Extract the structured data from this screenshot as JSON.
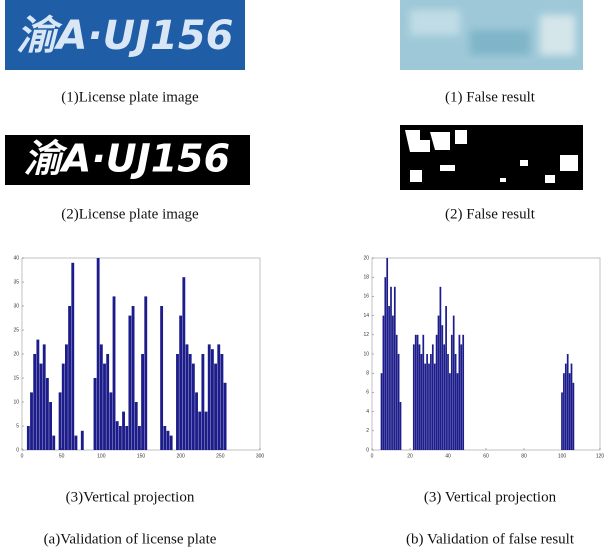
{
  "plate_text": "渝A·UJ156",
  "captions": [
    "(1)License plate image",
    "(1) False result",
    "(2)License plate image",
    "(2) False result",
    "(3)Vertical projection",
    "(3) Vertical projection",
    "(a)Validation of license plate",
    "(b) Validation of false result"
  ],
  "chart_data": [
    {
      "type": "bar",
      "color": "#1c1c8a",
      "x": [
        8,
        12,
        16,
        20,
        24,
        28,
        32,
        36,
        40,
        44,
        48,
        52,
        56,
        60,
        64,
        68,
        72,
        76,
        80,
        84,
        88,
        92,
        96,
        100,
        104,
        108,
        112,
        116,
        120,
        124,
        128,
        132,
        136,
        140,
        144,
        148,
        152,
        156,
        160,
        164,
        168,
        172,
        176,
        180,
        184,
        188,
        192,
        196,
        200,
        204,
        208,
        212,
        216,
        220,
        224,
        228,
        232,
        236,
        240,
        244,
        248,
        252,
        256,
        260
      ],
      "values": [
        5,
        12,
        20,
        23,
        18,
        22,
        15,
        10,
        3,
        0,
        12,
        18,
        22,
        30,
        39,
        3,
        0,
        4,
        0,
        0,
        0,
        15,
        40,
        22,
        18,
        20,
        12,
        32,
        6,
        5,
        8,
        5,
        28,
        30,
        10,
        5,
        20,
        32,
        0,
        0,
        0,
        0,
        30,
        5,
        4,
        3,
        0,
        20,
        28,
        36,
        22,
        20,
        18,
        12,
        8,
        20,
        8,
        22,
        21,
        18,
        22,
        20,
        14,
        0
      ],
      "xlim": [
        0,
        300
      ],
      "ylim": [
        0,
        40
      ],
      "xticks": [
        0,
        50,
        100,
        150,
        200,
        250,
        300
      ],
      "yticks": [
        0,
        5,
        10,
        15,
        20,
        25,
        30,
        35,
        40
      ]
    },
    {
      "type": "bar",
      "color": "#1c1c8a",
      "x": [
        5,
        6,
        7,
        8,
        9,
        10,
        11,
        12,
        13,
        14,
        15,
        22,
        23,
        24,
        25,
        26,
        27,
        28,
        29,
        30,
        31,
        32,
        33,
        34,
        35,
        36,
        37,
        38,
        39,
        40,
        41,
        42,
        43,
        44,
        45,
        46,
        47,
        48,
        100,
        101,
        102,
        103,
        104,
        105,
        106
      ],
      "values": [
        8,
        14,
        18,
        20,
        15,
        17,
        14,
        17,
        12,
        10,
        5,
        11,
        12,
        12,
        11,
        10,
        12,
        9,
        10,
        9,
        10,
        11,
        9,
        12,
        14,
        17,
        13,
        11,
        15,
        10,
        8,
        12,
        14,
        10,
        8,
        12,
        11,
        12,
        6,
        8,
        9,
        10,
        8,
        9,
        7
      ],
      "xlim": [
        0,
        120
      ],
      "ylim": [
        0,
        20
      ],
      "xticks": [
        0,
        20,
        40,
        60,
        80,
        100,
        120
      ],
      "yticks": [
        0,
        2,
        4,
        6,
        8,
        10,
        12,
        14,
        16,
        18,
        20
      ]
    }
  ]
}
